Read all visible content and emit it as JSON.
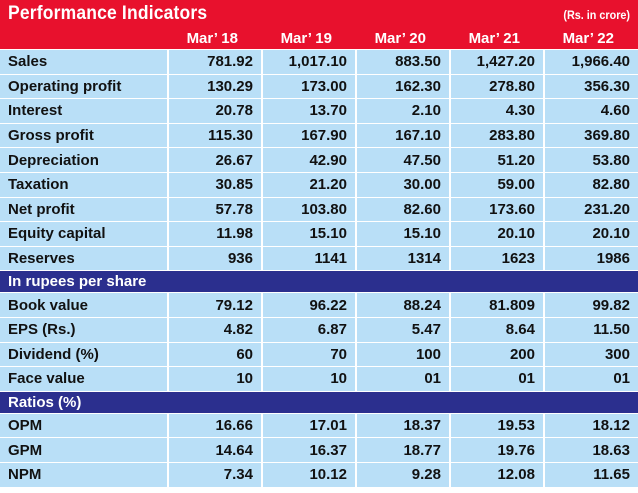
{
  "title": "Performance  Indicators",
  "unit": "(Rs. in crore)",
  "periods": [
    "Mar’ 18",
    "Mar’ 19",
    "Mar’ 20",
    "Mar’ 21",
    "Mar’ 22"
  ],
  "financials": [
    {
      "label": "Sales",
      "values": [
        "781.92",
        "1,017.10",
        "883.50",
        "1,427.20",
        "1,966.40"
      ]
    },
    {
      "label": "Operating profit",
      "values": [
        "130.29",
        "173.00",
        "162.30",
        "278.80",
        "356.30"
      ]
    },
    {
      "label": "Interest",
      "values": [
        "20.78",
        "13.70",
        "2.10",
        "4.30",
        "4.60"
      ]
    },
    {
      "label": "Gross profit",
      "values": [
        "115.30",
        "167.90",
        "167.10",
        "283.80",
        "369.80"
      ]
    },
    {
      "label": "Depreciation",
      "values": [
        "26.67",
        "42.90",
        "47.50",
        "51.20",
        "53.80"
      ]
    },
    {
      "label": "Taxation",
      "values": [
        "30.85",
        "21.20",
        "30.00",
        "59.00",
        "82.80"
      ]
    },
    {
      "label": "Net profit",
      "values": [
        "57.78",
        "103.80",
        "82.60",
        "173.60",
        "231.20"
      ]
    },
    {
      "label": "Equity capital",
      "values": [
        "11.98",
        "15.10",
        "15.10",
        "20.10",
        "20.10"
      ]
    },
    {
      "label": "Reserves",
      "values": [
        "936",
        "1141",
        "1314",
        "1623",
        "1986"
      ]
    }
  ],
  "per_share_heading": "In rupees per share",
  "per_share": [
    {
      "label": "Book value",
      "values": [
        "79.12",
        "96.22",
        "88.24",
        "81.809",
        "99.82"
      ]
    },
    {
      "label": "EPS (Rs.)",
      "values": [
        "4.82",
        "6.87",
        "5.47",
        "8.64",
        "11.50"
      ]
    },
    {
      "label": "Dividend (%)",
      "values": [
        "60",
        "70",
        "100",
        "200",
        "300"
      ]
    },
    {
      "label": "Face  value",
      "values": [
        "10",
        "10",
        "01",
        "01",
        "01"
      ]
    }
  ],
  "ratios_heading": "Ratios (%)",
  "ratios": [
    {
      "label": "OPM",
      "values": [
        "16.66",
        "17.01",
        "18.37",
        "19.53",
        "18.12"
      ]
    },
    {
      "label": "GPM",
      "values": [
        "14.64",
        "16.37",
        "18.77",
        "19.76",
        "18.63"
      ]
    },
    {
      "label": "NPM",
      "values": [
        "7.34",
        "10.12",
        "9.28",
        "12.08",
        "11.65"
      ]
    }
  ]
}
